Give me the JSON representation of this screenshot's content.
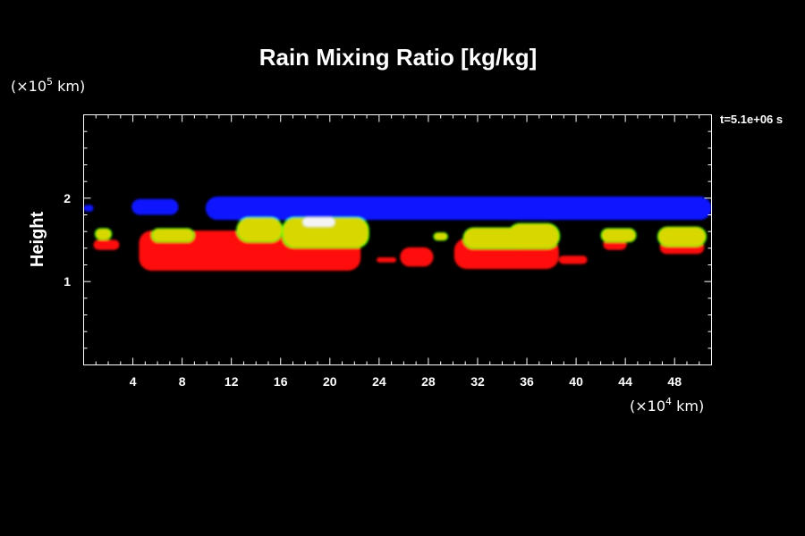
{
  "chart_data": {
    "type": "heatmap",
    "title": "Rain Mixing Ratio [kg/kg]",
    "ylabel": "Height",
    "x_unit": {
      "prefix": "(×10",
      "exp": "4",
      "suffix": " km)"
    },
    "y_unit": {
      "prefix": "(×10",
      "exp": "5",
      "suffix": " km)"
    },
    "time_label": "t=5.1e+06 s",
    "xlim": [
      0,
      51
    ],
    "ylim": [
      0,
      3
    ],
    "x_ticks": [
      4,
      8,
      12,
      16,
      20,
      24,
      28,
      32,
      36,
      40,
      44,
      48
    ],
    "y_ticks": [
      1,
      2
    ],
    "layers": [
      {
        "name": "blue",
        "color": "#0a14ff",
        "regions": [
          {
            "x": [
              0,
              0.8
            ],
            "y": [
              1.84,
              1.92
            ]
          },
          {
            "x": [
              3.9,
              7.7
            ],
            "y": [
              1.8,
              1.99
            ]
          },
          {
            "x": [
              9.9,
              51
            ],
            "y": [
              1.74,
              2.02
            ]
          }
        ]
      },
      {
        "name": "red",
        "color": "#ff1010",
        "regions": [
          {
            "x": [
              0.8,
              2.9
            ],
            "y": [
              1.38,
              1.5
            ]
          },
          {
            "x": [
              4.5,
              22.5
            ],
            "y": [
              1.13,
              1.61
            ]
          },
          {
            "x": [
              23.8,
              25.4
            ],
            "y": [
              1.23,
              1.29
            ]
          },
          {
            "x": [
              25.7,
              28.4
            ],
            "y": [
              1.18,
              1.41
            ]
          },
          {
            "x": [
              30.1,
              38.6
            ],
            "y": [
              1.15,
              1.52
            ]
          },
          {
            "x": [
              38.6,
              40.9
            ],
            "y": [
              1.21,
              1.31
            ]
          },
          {
            "x": [
              42.2,
              44.1
            ],
            "y": [
              1.38,
              1.51
            ]
          },
          {
            "x": [
              46.8,
              50.4
            ],
            "y": [
              1.33,
              1.49
            ]
          }
        ]
      },
      {
        "name": "green",
        "color": "#10ff10",
        "regions": [
          {
            "x": [
              0.9,
              2.3
            ],
            "y": [
              1.5,
              1.64
            ]
          },
          {
            "x": [
              5.5,
              9.0
            ],
            "y": [
              1.47,
              1.64
            ]
          },
          {
            "x": [
              12.4,
              16.2
            ],
            "y": [
              1.47,
              1.77
            ]
          },
          {
            "x": [
              16.1,
              23.2
            ],
            "y": [
              1.4,
              1.77
            ]
          },
          {
            "x": [
              28.4,
              29.6
            ],
            "y": [
              1.49,
              1.59
            ]
          },
          {
            "x": [
              30.8,
              36.1
            ],
            "y": [
              1.39,
              1.65
            ]
          },
          {
            "x": [
              34.4,
              38.7
            ],
            "y": [
              1.39,
              1.7
            ]
          },
          {
            "x": [
              42.0,
              44.9
            ],
            "y": [
              1.47,
              1.64
            ]
          },
          {
            "x": [
              46.6,
              50.6
            ],
            "y": [
              1.42,
              1.66
            ]
          }
        ]
      },
      {
        "name": "yellow",
        "color": "#d8d800",
        "regions": [
          {
            "x": [
              1.0,
              2.2
            ],
            "y": [
              1.51,
              1.63
            ]
          },
          {
            "x": [
              5.6,
              8.9
            ],
            "y": [
              1.48,
              1.63
            ]
          },
          {
            "x": [
              12.5,
              16.1
            ],
            "y": [
              1.48,
              1.76
            ]
          },
          {
            "x": [
              16.2,
              23.1
            ],
            "y": [
              1.41,
              1.76
            ]
          },
          {
            "x": [
              28.5,
              29.5
            ],
            "y": [
              1.5,
              1.58
            ]
          },
          {
            "x": [
              30.9,
              36.0
            ],
            "y": [
              1.4,
              1.64
            ]
          },
          {
            "x": [
              34.5,
              38.6
            ],
            "y": [
              1.4,
              1.69
            ]
          },
          {
            "x": [
              42.1,
              44.8
            ],
            "y": [
              1.48,
              1.63
            ]
          },
          {
            "x": [
              46.7,
              50.5
            ],
            "y": [
              1.43,
              1.65
            ]
          }
        ]
      },
      {
        "name": "white",
        "color": "#f4f4f4",
        "regions": [
          {
            "x": [
              17.8,
              20.4
            ],
            "y": [
              1.66,
              1.77
            ]
          }
        ]
      }
    ]
  }
}
